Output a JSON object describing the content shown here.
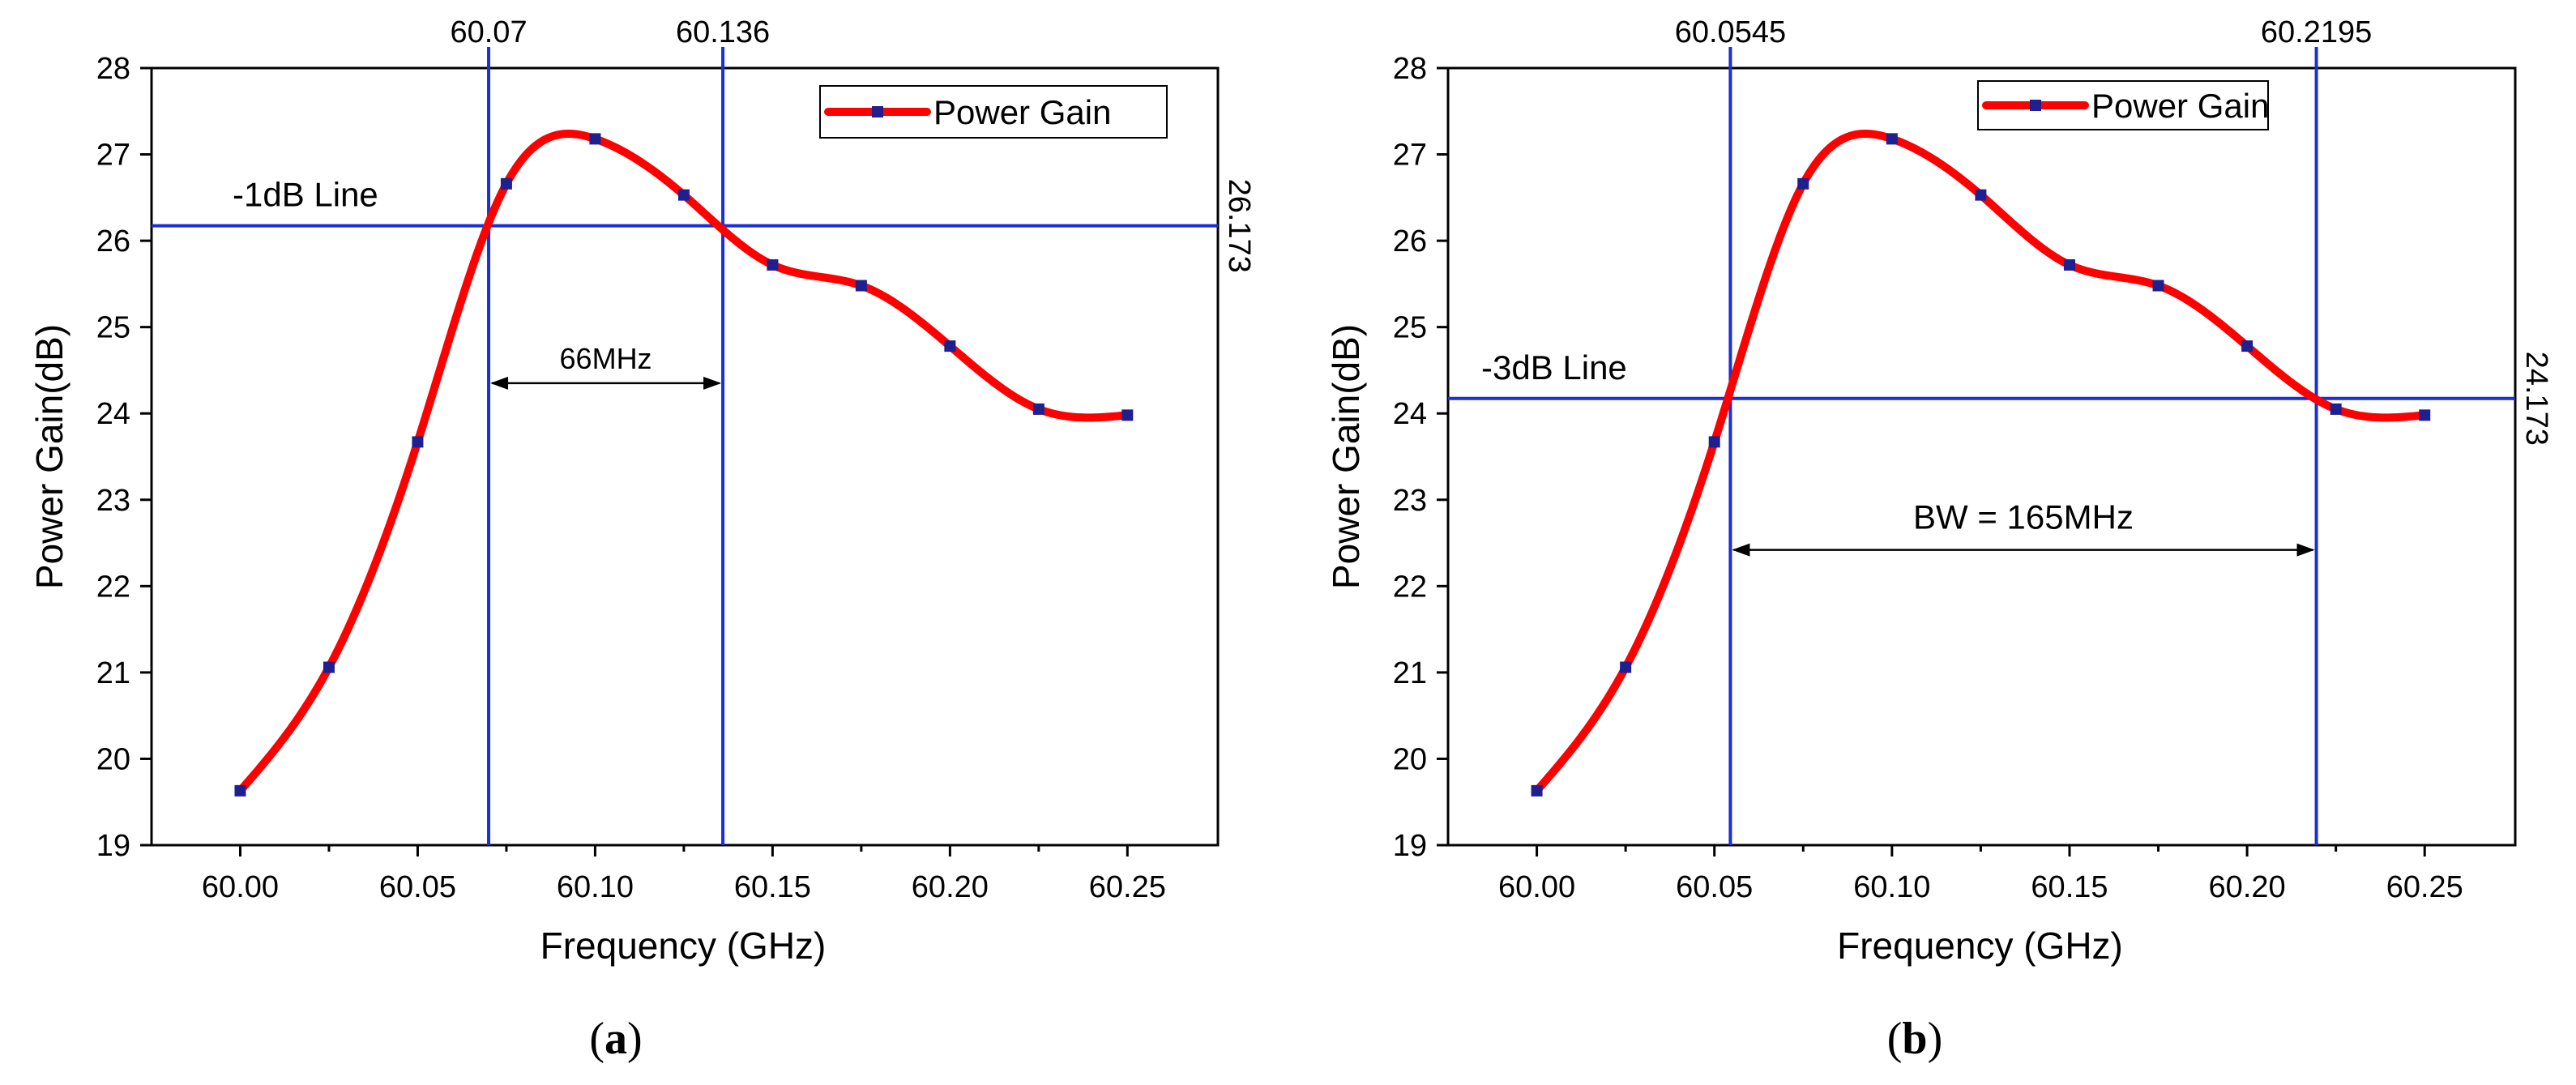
{
  "colors": {
    "curve": "#ff0000",
    "marker": "#1f1f8f",
    "ref_line": "#1a2fd6",
    "axis": "#000000"
  },
  "chart_data": [
    {
      "type": "line",
      "panel_label": "a",
      "xlabel": "Frequency (GHz)",
      "ylabel": "Power Gain(dB)",
      "xlim": [
        59.975,
        60.2755
      ],
      "ylim": [
        19,
        28
      ],
      "xticks": [
        60.0,
        60.05,
        60.1,
        60.15,
        60.2,
        60.25
      ],
      "xtick_labels": [
        "60.00",
        "60.05",
        "60.10",
        "60.15",
        "60.20",
        "60.25"
      ],
      "yticks": [
        19,
        20,
        21,
        22,
        23,
        24,
        25,
        26,
        27,
        28
      ],
      "ytick_labels": [
        "19",
        "20",
        "21",
        "22",
        "23",
        "24",
        "25",
        "26",
        "27",
        "28"
      ],
      "legend": "Power Gain",
      "series": [
        {
          "name": "Power Gain",
          "x": [
            60.0,
            60.025,
            60.05,
            60.075,
            60.1,
            60.125,
            60.15,
            60.175,
            60.2,
            60.225,
            60.25
          ],
          "y": [
            19.63,
            21.06,
            23.67,
            26.66,
            27.18,
            26.53,
            25.72,
            25.48,
            24.78,
            24.05,
            23.98
          ]
        }
      ],
      "hline": {
        "y": 26.173,
        "label": "-1dB Line",
        "value_label": "26.173"
      },
      "vlines": [
        {
          "x": 60.07,
          "label": "60.07"
        },
        {
          "x": 60.136,
          "label": "60.136"
        }
      ],
      "bandwidth": {
        "from": 60.07,
        "to": 60.136,
        "y": 24.35,
        "label": "66MHz"
      }
    },
    {
      "type": "line",
      "panel_label": "b",
      "xlabel": "Frequency (GHz)",
      "ylabel": "Power Gain(dB)",
      "xlim": [
        59.975,
        60.2755
      ],
      "ylim": [
        19,
        28
      ],
      "xticks": [
        60.0,
        60.05,
        60.1,
        60.15,
        60.2,
        60.25
      ],
      "xtick_labels": [
        "60.00",
        "60.05",
        "60.10",
        "60.15",
        "60.20",
        "60.25"
      ],
      "yticks": [
        19,
        20,
        21,
        22,
        23,
        24,
        25,
        26,
        27,
        28
      ],
      "ytick_labels": [
        "19",
        "20",
        "21",
        "22",
        "23",
        "24",
        "25",
        "26",
        "27",
        "28"
      ],
      "legend": "Power Gain",
      "series": [
        {
          "name": "Power Gain",
          "x": [
            60.0,
            60.025,
            60.05,
            60.075,
            60.1,
            60.125,
            60.15,
            60.175,
            60.2,
            60.225,
            60.25
          ],
          "y": [
            19.63,
            21.06,
            23.67,
            26.66,
            27.18,
            26.53,
            25.72,
            25.48,
            24.78,
            24.05,
            23.98
          ]
        }
      ],
      "hline": {
        "y": 24.173,
        "label": "-3dB Line",
        "value_label": "24.173"
      },
      "vlines": [
        {
          "x": 60.0545,
          "label": "60.0545"
        },
        {
          "x": 60.2195,
          "label": "60.2195"
        }
      ],
      "bandwidth": {
        "from": 60.0545,
        "to": 60.2195,
        "y": 22.42,
        "label": "BW = 165MHz"
      }
    }
  ]
}
